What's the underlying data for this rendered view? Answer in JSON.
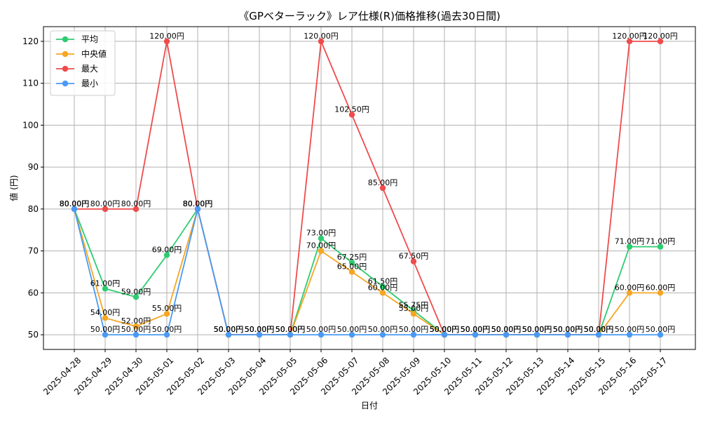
{
  "chart_data": {
    "type": "line",
    "title": "《GPベターラック》レア仕様(R)価格推移(過去30日間)",
    "xlabel": "日付",
    "ylabel": "値 (円)",
    "ylim": [
      46.5,
      123.5
    ],
    "yticks": [
      50,
      60,
      70,
      80,
      90,
      100,
      110,
      120
    ],
    "grid": true,
    "legend_position": "top-left",
    "label_suffix": "円",
    "categories": [
      "2025-04-28",
      "2025-04-29",
      "2025-04-30",
      "2025-05-01",
      "2025-05-02",
      "2025-05-03",
      "2025-05-04",
      "2025-05-05",
      "2025-05-06",
      "2025-05-07",
      "2025-05-08",
      "2025-05-09",
      "2025-05-10",
      "2025-05-11",
      "2025-05-12",
      "2025-05-13",
      "2025-05-14",
      "2025-05-15",
      "2025-05-16",
      "2025-05-17"
    ],
    "series": [
      {
        "name": "平均",
        "color": "#2ecc71",
        "values": [
          80,
          61,
          59,
          69,
          80,
          50,
          50,
          50,
          73,
          67.25,
          61.5,
          55.75,
          50,
          50,
          50,
          50,
          50,
          50,
          71,
          71
        ]
      },
      {
        "name": "中央値",
        "color": "#f5a623",
        "values": [
          80,
          54,
          52,
          55,
          80,
          50,
          50,
          50,
          70,
          65,
          60,
          55,
          50,
          50,
          50,
          50,
          50,
          50,
          60,
          60
        ]
      },
      {
        "name": "最大",
        "color": "#ef4b4b",
        "values": [
          80,
          80,
          80,
          120,
          80,
          50,
          50,
          50,
          120,
          102.5,
          85,
          67.5,
          50,
          50,
          50,
          50,
          50,
          50,
          120,
          120
        ]
      },
      {
        "name": "最小",
        "color": "#4a9af5",
        "values": [
          80,
          50,
          50,
          50,
          80,
          50,
          50,
          50,
          50,
          50,
          50,
          50,
          50,
          50,
          50,
          50,
          50,
          50,
          50,
          50
        ]
      }
    ]
  }
}
